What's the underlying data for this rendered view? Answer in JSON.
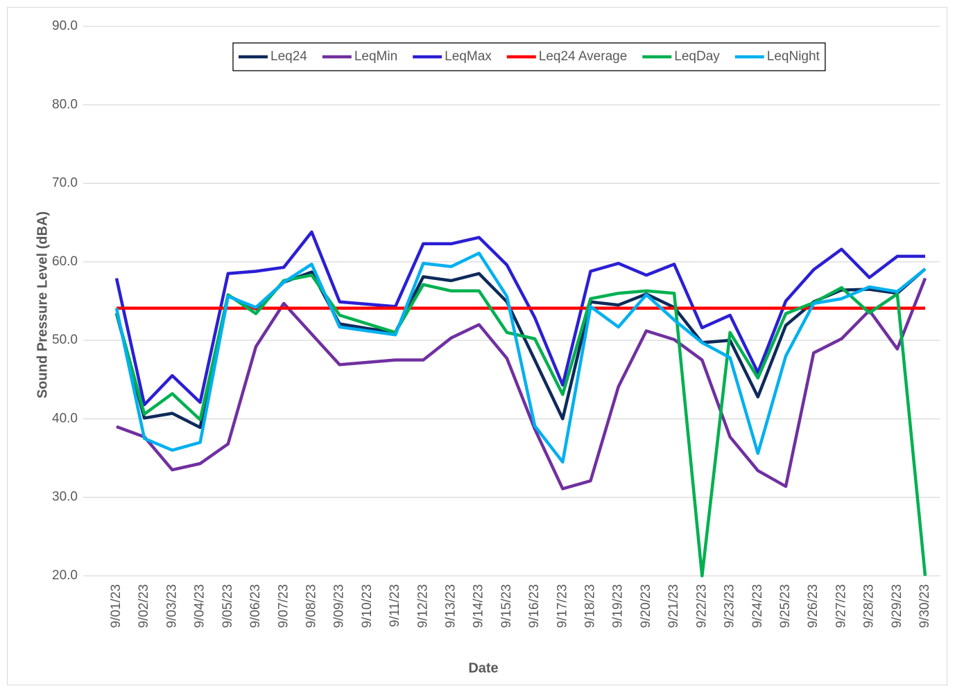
{
  "chart_data": {
    "type": "line",
    "x_label": "Date",
    "y_label": "Sound Pressure Level (dBA)",
    "categories": [
      "9/01/23",
      "9/02/23",
      "9/03/23",
      "9/04/23",
      "9/05/23",
      "9/06/23",
      "9/07/23",
      "9/08/23",
      "9/09/23",
      "9/10/23",
      "9/11/23",
      "9/12/23",
      "9/13/23",
      "9/14/23",
      "9/15/23",
      "9/16/23",
      "9/17/23",
      "9/18/23",
      "9/19/23",
      "9/20/23",
      "9/21/23",
      "9/22/23",
      "9/23/23",
      "9/24/23",
      "9/25/23",
      "9/26/23",
      "9/27/23",
      "9/28/23",
      "9/29/23",
      "9/30/23"
    ],
    "ylim": [
      20,
      90
    ],
    "yticks": [
      {
        "value": 20,
        "label": "20.0"
      },
      {
        "value": 30,
        "label": "30.0"
      },
      {
        "value": 40,
        "label": "40.0"
      },
      {
        "value": 50,
        "label": "50.0"
      },
      {
        "value": 60,
        "label": "60.0"
      },
      {
        "value": 70,
        "label": "70.0"
      },
      {
        "value": 80,
        "label": "80.0"
      },
      {
        "value": 90,
        "label": "90.0"
      }
    ],
    "grid": true,
    "legend": "top",
    "series": [
      {
        "name": "Leq24",
        "color": "#0e2a5a",
        "values": [
          53.4,
          40.1,
          40.7,
          38.9,
          55.7,
          54.0,
          57.4,
          58.7,
          52.1,
          51.5,
          51.0,
          58.1,
          57.6,
          58.5,
          54.9,
          47.5,
          40.0,
          54.9,
          54.5,
          55.9,
          54.2,
          49.7,
          50.0,
          42.8,
          51.9,
          54.9,
          56.4,
          56.5,
          56.0,
          59.1
        ]
      },
      {
        "name": "LeqMin",
        "color": "#7030a0",
        "values": [
          39.0,
          37.7,
          33.5,
          34.3,
          36.8,
          49.2,
          54.7,
          50.8,
          46.9,
          47.2,
          47.5,
          47.5,
          50.3,
          52.0,
          47.7,
          38.7,
          31.1,
          32.1,
          44.1,
          51.2,
          50.1,
          47.5,
          37.7,
          33.4,
          31.4,
          48.4,
          50.2,
          53.8,
          48.9,
          57.9
        ]
      },
      {
        "name": "LeqMax",
        "color": "#2b1fd4",
        "values": [
          57.9,
          41.8,
          45.5,
          42.1,
          58.5,
          58.8,
          59.3,
          63.8,
          54.9,
          54.6,
          54.3,
          62.3,
          62.3,
          63.1,
          59.6,
          52.9,
          44.3,
          58.8,
          59.8,
          58.3,
          59.7,
          51.6,
          53.2,
          45.9,
          55.0,
          59.0,
          61.6,
          58.0,
          60.7,
          60.7
        ]
      },
      {
        "name": "Leq24 Average",
        "color": "#ff0000",
        "values": [
          54.1,
          54.1,
          54.1,
          54.1,
          54.1,
          54.1,
          54.1,
          54.1,
          54.1,
          54.1,
          54.1,
          54.1,
          54.1,
          54.1,
          54.1,
          54.1,
          54.1,
          54.1,
          54.1,
          54.1,
          54.1,
          54.1,
          54.1,
          54.1,
          54.1,
          54.1,
          54.1,
          54.1,
          54.1,
          54.1
        ]
      },
      {
        "name": "LeqDay",
        "color": "#00b050",
        "values": [
          53.5,
          40.6,
          43.2,
          39.9,
          55.8,
          53.4,
          57.6,
          58.3,
          53.2,
          52.1,
          51.0,
          57.1,
          56.3,
          56.3,
          51.0,
          50.2,
          43.1,
          55.3,
          56.0,
          56.3,
          56.0,
          20.0,
          51.0,
          45.2,
          53.4,
          54.8,
          56.7,
          53.5,
          55.9,
          20.0
        ]
      },
      {
        "name": "LeqNight",
        "color": "#00b0f0",
        "values": [
          54.1,
          37.5,
          36.0,
          37.0,
          55.6,
          54.2,
          57.4,
          59.7,
          51.7,
          51.2,
          50.7,
          59.8,
          59.4,
          61.1,
          55.6,
          39.1,
          34.5,
          54.3,
          51.7,
          55.8,
          52.6,
          49.7,
          47.8,
          35.6,
          48.0,
          54.7,
          55.3,
          56.8,
          56.2,
          59.1
        ]
      }
    ]
  }
}
